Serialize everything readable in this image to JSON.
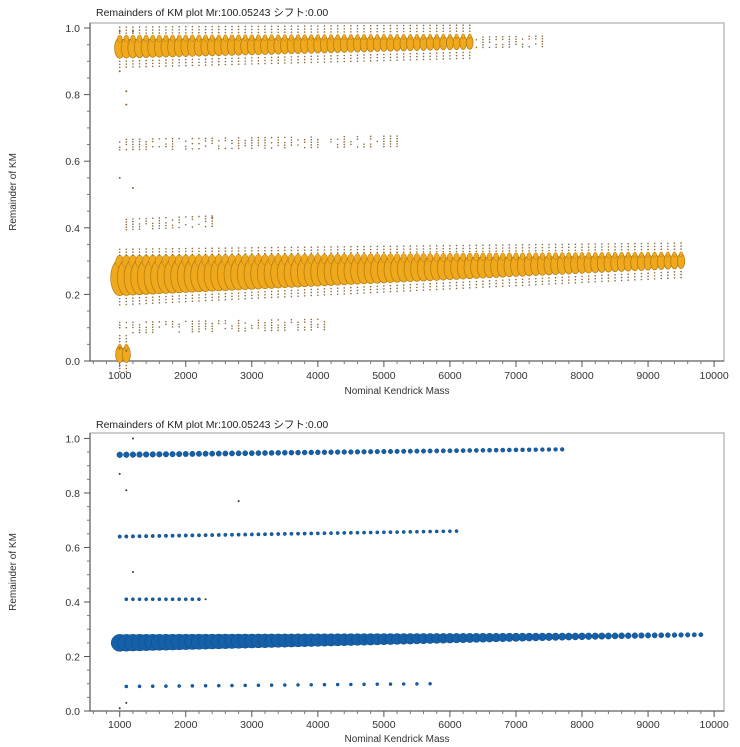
{
  "chart_data": [
    {
      "type": "scatter",
      "title": "Remainders of KM plot   Mr:100.05243 シフト:0.00",
      "xlabel": "Nominal Kendrick Mass",
      "ylabel": "Remainder of KM",
      "xlim": [
        550,
        10150
      ],
      "ylim": [
        0.0,
        1.015
      ],
      "xticks": [
        "1000",
        "2000",
        "3000",
        "4000",
        "5000",
        "6000",
        "7000",
        "8000",
        "9000",
        "10000"
      ],
      "xtick_values": [
        1000,
        2000,
        3000,
        4000,
        5000,
        6000,
        7000,
        8000,
        9000,
        10000
      ],
      "yticks": [
        "0.0",
        "0.2",
        "0.4",
        "0.6",
        "0.8",
        "1.0"
      ],
      "ytick_values": [
        0.0,
        0.2,
        0.4,
        0.6,
        0.8,
        1.0
      ],
      "grid": false,
      "marker_style": "stacked-ellipse",
      "color": "#F0A81C",
      "edge_color": "#B07810",
      "series": [
        {
          "name": "main-band",
          "x_start": 1000,
          "x_end": 9500,
          "x_step": 100,
          "y_start": 0.25,
          "y_end": 0.3,
          "size_start": 1.0,
          "size_end": 0.25
        },
        {
          "name": "upper-band",
          "x_start": 1000,
          "x_end": 7400,
          "x_step": 100,
          "y_start": 0.94,
          "y_end": 0.96,
          "size_start": 0.45,
          "size_end": 0.15
        },
        {
          "name": "band-065",
          "x_start": 1000,
          "x_end": 5200,
          "x_step": 100,
          "y_start": 0.65,
          "y_end": 0.66,
          "size_start": 0.12,
          "size_end": 0.08
        },
        {
          "name": "band-042",
          "x_start": 1100,
          "x_end": 2400,
          "x_step": 100,
          "y_start": 0.41,
          "y_end": 0.42,
          "size_start": 0.08,
          "size_end": 0.06
        },
        {
          "name": "band-010",
          "x_start": 1000,
          "x_end": 4100,
          "x_step": 100,
          "y_start": 0.1,
          "y_end": 0.11,
          "size_start": 0.08,
          "size_end": 0.06
        },
        {
          "name": "low-point",
          "x_start": 1000,
          "x_end": 1000,
          "x_step": 100,
          "y_start": 0.02,
          "y_end": 0.02,
          "size_start": 0.3,
          "size_end": 0.3
        }
      ],
      "outliers": [
        [
          1000,
          0.87
        ],
        [
          1100,
          0.81
        ],
        [
          1100,
          0.77
        ],
        [
          1000,
          0.55
        ],
        [
          1200,
          0.52
        ],
        [
          1000,
          0.99
        ],
        [
          1200,
          0.99
        ],
        [
          2400,
          0.43
        ],
        [
          1000,
          0.04
        ],
        [
          1100,
          0.03
        ]
      ]
    },
    {
      "type": "scatter",
      "title": "Remainders of KM plot   Mr:100.05243 シフト:0.00",
      "xlabel": "Nominal Kendrick Mass",
      "ylabel": "Remainder of KM",
      "xlim": [
        550,
        10150
      ],
      "ylim": [
        0.0,
        1.02
      ],
      "xticks": [
        "1000",
        "2000",
        "3000",
        "4000",
        "5000",
        "6000",
        "7000",
        "8000",
        "9000",
        "10000"
      ],
      "xtick_values": [
        1000,
        2000,
        3000,
        4000,
        5000,
        6000,
        7000,
        8000,
        9000,
        10000
      ],
      "yticks": [
        "0.0",
        "0.2",
        "0.4",
        "0.6",
        "0.8",
        "1.0"
      ],
      "ytick_values": [
        0.0,
        0.2,
        0.4,
        0.6,
        0.8,
        1.0
      ],
      "grid": false,
      "marker_style": "circle",
      "color": "#1560A8",
      "edge_color": "#0D4A85",
      "series": [
        {
          "name": "main-band",
          "x_start": 1000,
          "x_end": 9800,
          "x_step": 100,
          "y_start": 0.25,
          "y_end": 0.28,
          "size_start": 1.0,
          "size_end": 0.15
        },
        {
          "name": "upper-band",
          "x_start": 1000,
          "x_end": 7700,
          "x_step": 100,
          "y_start": 0.94,
          "y_end": 0.96,
          "size_start": 0.25,
          "size_end": 0.12
        },
        {
          "name": "band-064",
          "x_start": 1000,
          "x_end": 6100,
          "x_step": 100,
          "y_start": 0.64,
          "y_end": 0.66,
          "size_start": 0.1,
          "size_end": 0.08
        },
        {
          "name": "band-041",
          "x_start": 1100,
          "x_end": 2200,
          "x_step": 100,
          "y_start": 0.41,
          "y_end": 0.41,
          "size_start": 0.08,
          "size_end": 0.08
        },
        {
          "name": "band-009",
          "x_start": 1100,
          "x_end": 5700,
          "x_step": 200,
          "y_start": 0.09,
          "y_end": 0.1,
          "size_start": 0.08,
          "size_end": 0.07
        }
      ],
      "outliers": [
        [
          1000,
          0.01
        ],
        [
          1000,
          0.87
        ],
        [
          1100,
          0.81
        ],
        [
          1200,
          1.0
        ],
        [
          1200,
          0.51
        ],
        [
          2800,
          0.77
        ],
        [
          2300,
          0.41
        ],
        [
          1100,
          0.03
        ]
      ]
    }
  ]
}
